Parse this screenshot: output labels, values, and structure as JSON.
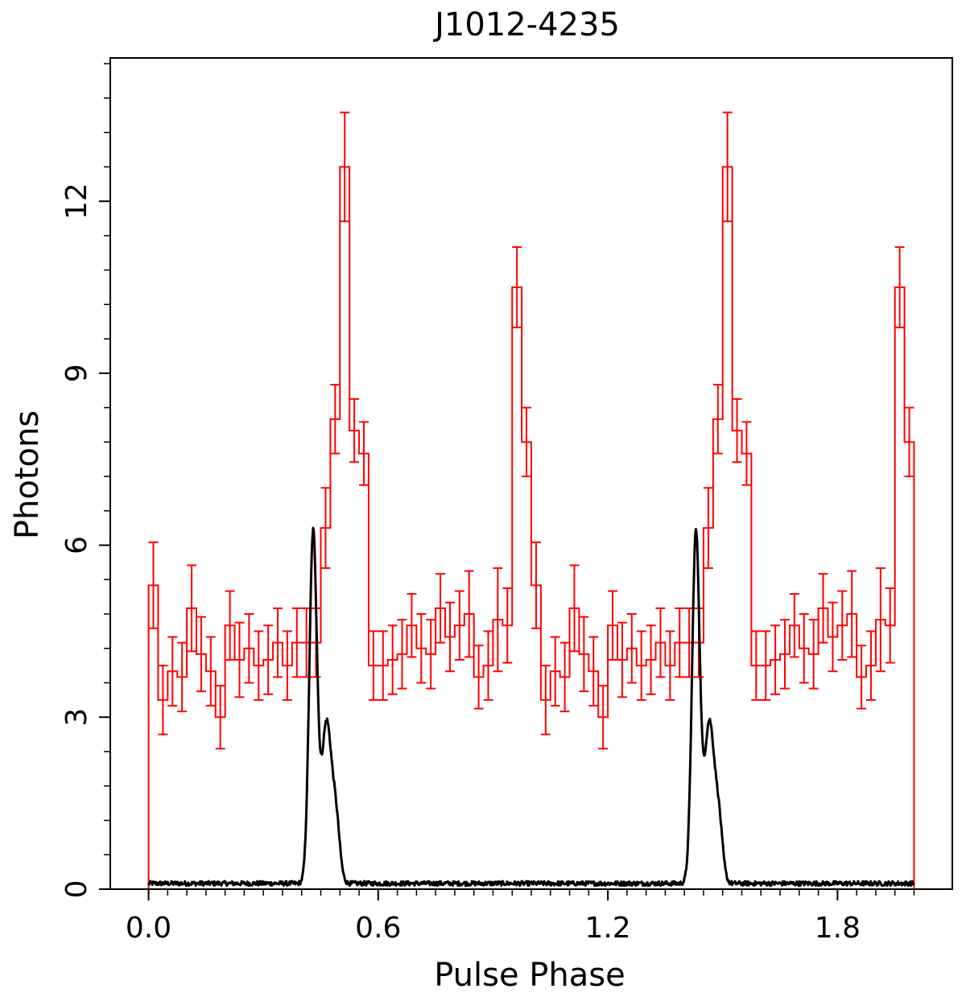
{
  "chart_data": {
    "type": "line",
    "title": "J1012-4235",
    "xlabel": "Pulse Phase",
    "ylabel": "Photons",
    "xlim": [
      -0.1,
      2.1
    ],
    "ylim": [
      0,
      14.5
    ],
    "xticks": [
      0.0,
      0.6,
      1.2,
      1.8
    ],
    "xtick_labels": [
      "0.0",
      "0.6",
      "1.2",
      "1.8"
    ],
    "yticks": [
      0,
      3,
      6,
      9,
      12
    ],
    "ytick_labels": [
      "0",
      "3",
      "6",
      "9",
      "12"
    ],
    "grid": false,
    "legend": "none",
    "series": [
      {
        "kind": "histogram-with-errorbars",
        "color": "#ff0000",
        "bin_width": 0.025,
        "x_start": 0.0,
        "values": [
          5.3,
          3.3,
          3.8,
          3.7,
          4.9,
          4.1,
          3.8,
          3.0,
          4.6,
          4.0,
          4.2,
          3.9,
          4.0,
          4.3,
          3.9,
          4.3,
          4.3,
          4.3,
          6.3,
          8.2,
          12.6,
          8.0,
          7.6,
          3.9,
          3.9,
          4.0,
          4.1,
          4.6,
          4.2,
          4.1,
          4.9,
          4.4,
          4.6,
          4.8,
          3.7,
          3.9,
          4.7,
          4.6,
          10.5,
          7.8
        ],
        "errors": [
          0.75,
          0.6,
          0.6,
          0.6,
          0.75,
          0.65,
          0.6,
          0.55,
          0.6,
          0.65,
          0.6,
          0.6,
          0.6,
          0.6,
          0.6,
          0.6,
          0.6,
          0.6,
          0.7,
          0.6,
          0.95,
          0.55,
          0.55,
          0.6,
          0.6,
          0.6,
          0.6,
          0.55,
          0.6,
          0.6,
          0.6,
          0.6,
          0.6,
          0.75,
          0.55,
          0.6,
          0.9,
          0.65,
          0.7,
          0.6
        ]
      },
      {
        "kind": "radio-profile",
        "color": "#000000",
        "baseline": 0.1,
        "peaks": [
          {
            "center": 0.43,
            "amplitude": 6.1,
            "width": 0.01
          },
          {
            "center": 0.465,
            "amplitude": 2.8,
            "width": 0.013
          },
          {
            "center": 0.49,
            "amplitude": 1.0,
            "width": 0.01
          }
        ]
      }
    ]
  }
}
